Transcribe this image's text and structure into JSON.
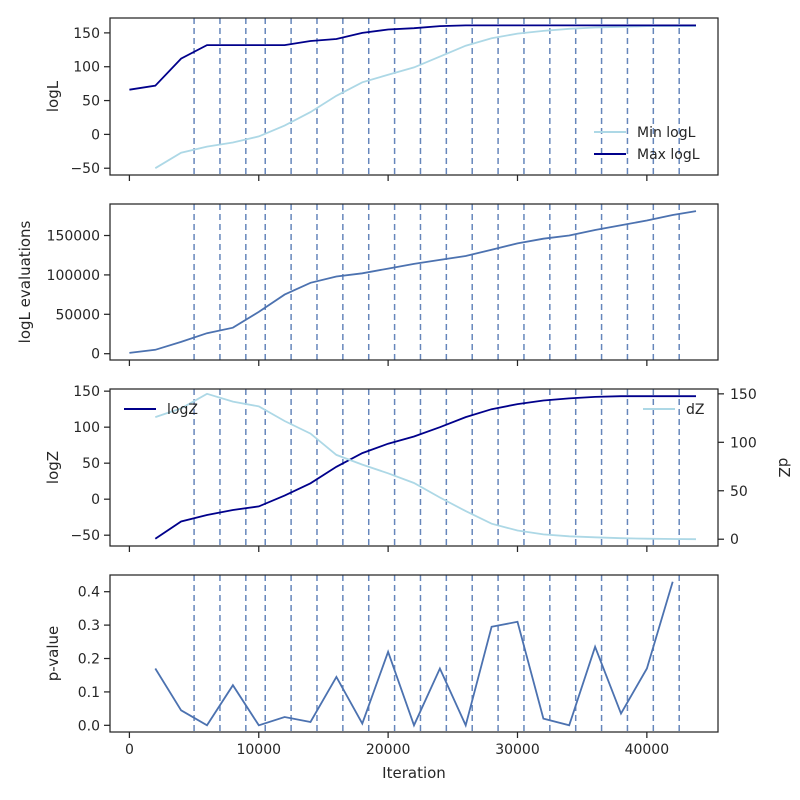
{
  "figure": {
    "xlabel": "Iteration",
    "vlines": [
      5000,
      7000,
      9000,
      10500,
      12500,
      14500,
      16500,
      18500,
      20500,
      22500,
      24500,
      26500,
      28500,
      30500,
      32500,
      34500,
      36500,
      38500,
      40500,
      42500
    ],
    "colors": {
      "light": "#add8e6",
      "dark": "#00008b",
      "mid": "#4c72b0",
      "vline": "#4c72b0",
      "axis": "#262626"
    }
  },
  "chart_data": [
    {
      "type": "line",
      "ylabel": "logL",
      "xlim": [
        -1500,
        45500
      ],
      "ylim": [
        -60,
        172
      ],
      "xticks": [
        0,
        10000,
        20000,
        30000,
        40000
      ],
      "yticks": [
        -50,
        0,
        50,
        100,
        150
      ],
      "legend": "bottom-right",
      "series": [
        {
          "name": "Min logL",
          "color": "light",
          "x": [
            2000,
            4000,
            6000,
            8000,
            10000,
            12000,
            14000,
            16000,
            18000,
            20000,
            22000,
            24000,
            26000,
            28000,
            30000,
            32000,
            34000,
            36000,
            38000,
            40000,
            42000,
            43800
          ],
          "y": [
            -50,
            -27,
            -18,
            -12,
            -3,
            13,
            33,
            57,
            77,
            88,
            99,
            115,
            131,
            142,
            149,
            153,
            156,
            158,
            159,
            160,
            160,
            160
          ]
        },
        {
          "name": "Max logL",
          "color": "dark",
          "x": [
            0,
            2000,
            4000,
            6000,
            8000,
            10000,
            12000,
            14000,
            16000,
            18000,
            20000,
            22000,
            24000,
            26000,
            28000,
            30000,
            32000,
            34000,
            36000,
            38000,
            40000,
            42000,
            43800
          ],
          "y": [
            66,
            72,
            112,
            132,
            132,
            132,
            132,
            138,
            141,
            150,
            155,
            157,
            160,
            161,
            161,
            161,
            161,
            161,
            161,
            161,
            161,
            161,
            161
          ]
        }
      ]
    },
    {
      "type": "line",
      "ylabel": "logL evaluations",
      "xlim": [
        -1500,
        45500
      ],
      "ylim": [
        -8000,
        190000
      ],
      "xticks": [
        0,
        10000,
        20000,
        30000,
        40000
      ],
      "yticks": [
        0,
        50000,
        100000,
        150000
      ],
      "series": [
        {
          "color": "mid",
          "x": [
            0,
            2000,
            4000,
            6000,
            8000,
            10000,
            12000,
            14000,
            16000,
            18000,
            20000,
            22000,
            24000,
            26000,
            28000,
            30000,
            32000,
            34000,
            36000,
            38000,
            40000,
            42000,
            43800
          ],
          "y": [
            1000,
            5000,
            15000,
            26000,
            33000,
            53000,
            75000,
            90000,
            98000,
            102000,
            108000,
            114000,
            119000,
            124000,
            132000,
            140000,
            146000,
            150000,
            157000,
            163000,
            169000,
            176000,
            181000
          ]
        }
      ]
    },
    {
      "type": "line",
      "ylabel": "logZ",
      "ylabel_right": "dZ",
      "xlim": [
        -1500,
        45500
      ],
      "ylim": [
        -65,
        153
      ],
      "ylim_right": [
        -7,
        155
      ],
      "xticks": [
        0,
        10000,
        20000,
        30000,
        40000
      ],
      "yticks": [
        -50,
        0,
        50,
        100,
        150
      ],
      "yticks_right": [
        0,
        50,
        100,
        150
      ],
      "legend": "top-left (logZ), top-right (dZ)",
      "series": [
        {
          "name": "logZ",
          "color": "dark",
          "axis": "left",
          "x": [
            2000,
            4000,
            6000,
            8000,
            10000,
            12000,
            14000,
            16000,
            18000,
            20000,
            22000,
            24000,
            26000,
            28000,
            30000,
            32000,
            34000,
            36000,
            38000,
            40000,
            42000,
            43800
          ],
          "y": [
            -55,
            -31,
            -22,
            -15,
            -10,
            5,
            22,
            45,
            64,
            77,
            87,
            100,
            114,
            125,
            132,
            137,
            140,
            142,
            143,
            143,
            143,
            143
          ]
        },
        {
          "name": "dZ",
          "color": "light",
          "axis": "right",
          "x": [
            2000,
            4000,
            6000,
            8000,
            10000,
            12000,
            14000,
            16000,
            18000,
            20000,
            22000,
            24000,
            26000,
            28000,
            30000,
            32000,
            34000,
            36000,
            38000,
            40000,
            42000,
            43800
          ],
          "y": [
            126,
            135,
            150,
            142,
            137,
            122,
            109,
            87,
            77,
            68,
            58,
            43,
            29,
            16,
            9,
            5,
            3,
            2,
            1,
            0.5,
            0.2,
            0
          ]
        }
      ]
    },
    {
      "type": "line",
      "ylabel": "p-value",
      "xlabel": "Iteration",
      "xlim": [
        -1500,
        45500
      ],
      "ylim": [
        -0.02,
        0.45
      ],
      "xticks": [
        0,
        10000,
        20000,
        30000,
        40000
      ],
      "yticks": [
        0.0,
        0.1,
        0.2,
        0.3,
        0.4
      ],
      "series": [
        {
          "color": "mid",
          "x": [
            2000,
            4000,
            6000,
            8000,
            10000,
            12000,
            14000,
            16000,
            18000,
            20000,
            22000,
            24000,
            26000,
            28000,
            30000,
            32000,
            34000,
            36000,
            38000,
            40000,
            42000
          ],
          "y": [
            0.17,
            0.045,
            0.0,
            0.12,
            0.0,
            0.025,
            0.01,
            0.145,
            0.005,
            0.22,
            0.0,
            0.17,
            0.0,
            0.295,
            0.31,
            0.02,
            0.0,
            0.235,
            0.035,
            0.17,
            0.43
          ]
        }
      ]
    }
  ]
}
